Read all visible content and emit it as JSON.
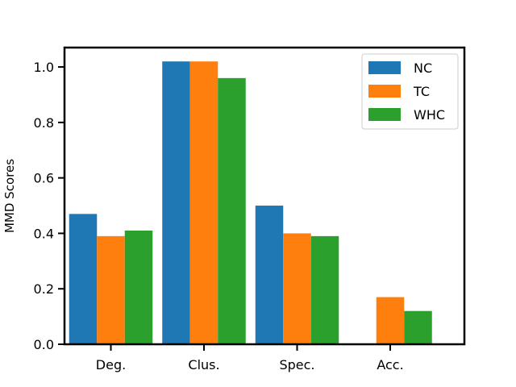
{
  "chart_data": {
    "type": "bar",
    "categories": [
      "Deg.",
      "Clus.",
      "Spec.",
      "Acc."
    ],
    "series": [
      {
        "name": "NC",
        "values": [
          0.47,
          1.02,
          0.5,
          0.0
        ],
        "color": "#1f77b4"
      },
      {
        "name": "TC",
        "values": [
          0.39,
          1.02,
          0.4,
          0.17
        ],
        "color": "#ff7f0e"
      },
      {
        "name": "WHC",
        "values": [
          0.41,
          0.96,
          0.39,
          0.12
        ],
        "color": "#2ca02c"
      }
    ],
    "xlabel": "",
    "ylabel": "MMD Scores",
    "ylim": [
      0,
      1.07
    ],
    "yticks": [
      0.0,
      0.2,
      0.4,
      0.6,
      0.8,
      1.0
    ],
    "ytick_labels": [
      "0.0",
      "0.2",
      "0.4",
      "0.6",
      "0.8",
      "1.0"
    ],
    "grid": false,
    "legend_position": "top-right"
  }
}
